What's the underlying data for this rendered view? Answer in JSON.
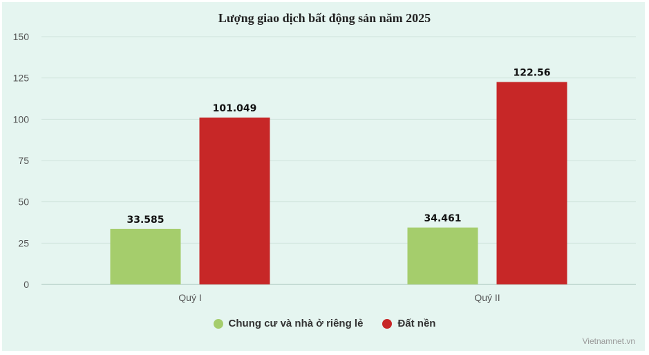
{
  "chart_data": {
    "type": "bar",
    "title": "Lượng giao dịch bất động sản năm 2025",
    "categories": [
      "Quý I",
      "Quý II"
    ],
    "series": [
      {
        "name": "Chung cư và nhà ở riêng lẻ",
        "color": "#a5cd6c",
        "values": [
          33.585,
          34.461
        ],
        "labels": [
          "33.585",
          "34.461"
        ]
      },
      {
        "name": "Đất nền",
        "color": "#c72727",
        "values": [
          101.049,
          122.56
        ],
        "labels": [
          "101.049",
          "122.56"
        ]
      }
    ],
    "ylim": [
      0,
      150
    ],
    "yticks": [
      0,
      25,
      50,
      75,
      100,
      125,
      150
    ],
    "xlabel": "",
    "ylabel": "",
    "grid": true,
    "legend_position": "bottom-center"
  },
  "source": "Vietnamnet.vn"
}
